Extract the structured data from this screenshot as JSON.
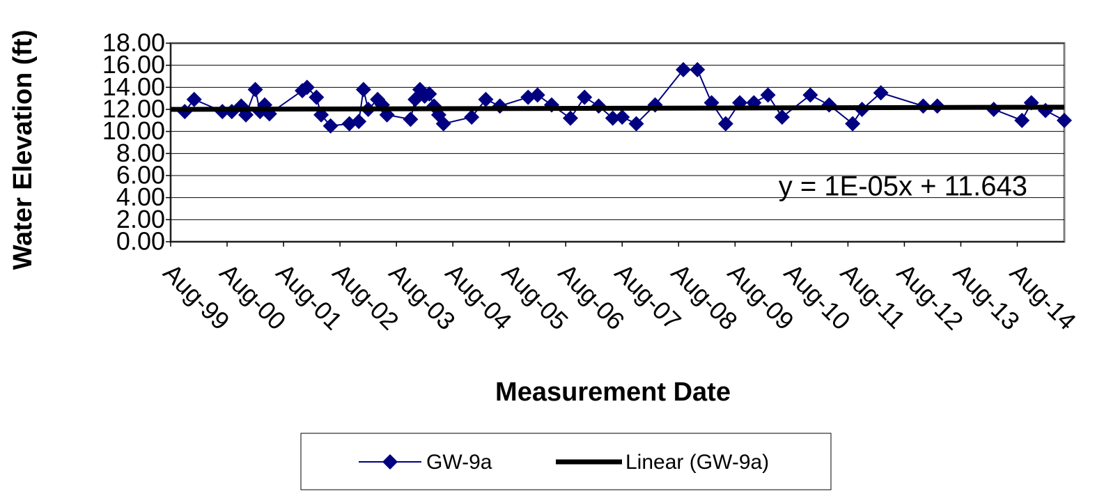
{
  "chart_data": {
    "type": "line",
    "xlabel": "Measurement Date",
    "ylabel": "Water Elevation (ft)",
    "x": [
      "1999-11",
      "2000-01",
      "2000-07",
      "2000-09",
      "2000-11",
      "2000-12",
      "2001-02",
      "2001-03",
      "2001-04",
      "2001-05",
      "2001-12",
      "2002-01",
      "2002-03",
      "2002-04",
      "2002-06",
      "2002-10",
      "2002-12",
      "2003-01",
      "2003-02",
      "2003-04",
      "2003-05",
      "2003-06",
      "2003-11",
      "2003-12",
      "2004-01",
      "2004-02",
      "2004-03",
      "2004-04",
      "2004-05",
      "2004-06",
      "2004-12",
      "2005-03",
      "2005-06",
      "2005-12",
      "2006-02",
      "2006-05",
      "2006-09",
      "2006-12",
      "2007-03",
      "2007-06",
      "2007-08",
      "2007-11",
      "2008-03",
      "2008-09",
      "2008-12",
      "2009-03",
      "2009-06",
      "2009-09",
      "2009-12",
      "2010-03",
      "2010-06",
      "2010-12",
      "2011-04",
      "2011-09",
      "2011-11",
      "2012-03",
      "2012-12",
      "2013-03",
      "2014-03",
      "2014-09",
      "2014-11",
      "2015-02",
      "2015-06"
    ],
    "series": [
      {
        "name": "GW-9a",
        "color": "#000080",
        "values": [
          11.8,
          12.9,
          11.8,
          11.8,
          12.3,
          11.5,
          13.8,
          11.8,
          12.4,
          11.6,
          13.7,
          14.0,
          13.1,
          11.5,
          10.5,
          10.7,
          10.9,
          13.8,
          12.0,
          12.9,
          12.4,
          11.5,
          11.1,
          12.9,
          13.8,
          13.2,
          13.4,
          12.3,
          11.5,
          10.7,
          11.3,
          12.9,
          12.3,
          13.1,
          13.3,
          12.4,
          11.2,
          13.1,
          12.3,
          11.2,
          11.3,
          10.7,
          12.4,
          15.6,
          15.6,
          12.6,
          10.7,
          12.6,
          12.6,
          13.3,
          11.3,
          13.3,
          12.4,
          10.7,
          12.0,
          13.5,
          12.3,
          12.3,
          12.0,
          11.0,
          12.6,
          11.9,
          11.0
        ]
      }
    ],
    "trendline": {
      "name": "Linear (GW-9a)",
      "color": "#000000",
      "x": [
        "1999-08",
        "2015-06"
      ],
      "values": [
        12.0,
        12.2
      ]
    },
    "trendline_equation": "y = 1E-05x + 11.643",
    "xlim": [
      "1999-08",
      "2015-06"
    ],
    "xticks": [
      {
        "value": "1999-08",
        "label": "Aug-99"
      },
      {
        "value": "2000-08",
        "label": "Aug-00"
      },
      {
        "value": "2001-08",
        "label": "Aug-01"
      },
      {
        "value": "2002-08",
        "label": "Aug-02"
      },
      {
        "value": "2003-08",
        "label": "Aug-03"
      },
      {
        "value": "2004-08",
        "label": "Aug-04"
      },
      {
        "value": "2005-08",
        "label": "Aug-05"
      },
      {
        "value": "2006-08",
        "label": "Aug-06"
      },
      {
        "value": "2007-08",
        "label": "Aug-07"
      },
      {
        "value": "2008-08",
        "label": "Aug-08"
      },
      {
        "value": "2009-08",
        "label": "Aug-09"
      },
      {
        "value": "2010-08",
        "label": "Aug-10"
      },
      {
        "value": "2011-08",
        "label": "Aug-11"
      },
      {
        "value": "2012-08",
        "label": "Aug-12"
      },
      {
        "value": "2013-08",
        "label": "Aug-13"
      },
      {
        "value": "2014-08",
        "label": "Aug-14"
      }
    ],
    "ylim": [
      0,
      18
    ],
    "yticks": [
      {
        "value": 0,
        "label": "0.00"
      },
      {
        "value": 2,
        "label": "2.00"
      },
      {
        "value": 4,
        "label": "4.00"
      },
      {
        "value": 6,
        "label": "6.00"
      },
      {
        "value": 8,
        "label": "8.00"
      },
      {
        "value": 10,
        "label": "10.00"
      },
      {
        "value": 12,
        "label": "12.00"
      },
      {
        "value": 14,
        "label": "14.00"
      },
      {
        "value": 16,
        "label": "16.00"
      },
      {
        "value": 18,
        "label": "18.00"
      }
    ],
    "grid": true,
    "legend": "bottom"
  }
}
